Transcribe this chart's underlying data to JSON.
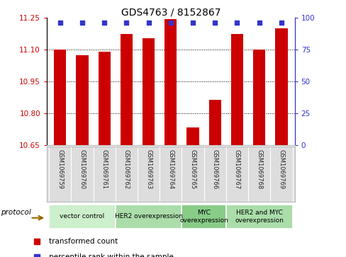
{
  "title": "GDS4763 / 8152867",
  "samples": [
    "GSM1069759",
    "GSM1069760",
    "GSM1069761",
    "GSM1069762",
    "GSM1069763",
    "GSM1069764",
    "GSM1069765",
    "GSM1069766",
    "GSM1069767",
    "GSM1069768",
    "GSM1069769"
  ],
  "transformed_counts": [
    11.1,
    11.075,
    11.09,
    11.175,
    11.155,
    11.245,
    10.735,
    10.865,
    11.175,
    11.1,
    11.2
  ],
  "ylim_left": [
    10.65,
    11.25
  ],
  "ylim_right": [
    0,
    100
  ],
  "yticks_left": [
    10.65,
    10.8,
    10.95,
    11.1,
    11.25
  ],
  "yticks_right": [
    0,
    25,
    50,
    75,
    100
  ],
  "bar_color": "#CC0000",
  "percentile_color": "#3333CC",
  "groups": [
    {
      "label": "vector control",
      "start": 0,
      "end": 2,
      "color": "#ccf0cc"
    },
    {
      "label": "HER2 overexpression",
      "start": 3,
      "end": 5,
      "color": "#aaddaa"
    },
    {
      "label": "MYC\noverexpression",
      "start": 6,
      "end": 7,
      "color": "#88cc88"
    },
    {
      "label": "HER2 and MYC\noverexpression",
      "start": 8,
      "end": 10,
      "color": "#aaddaa"
    }
  ],
  "protocol_label": "protocol",
  "legend_bar_label": "transformed count",
  "legend_pct_label": "percentile rank within the sample",
  "background_color": "#ffffff",
  "tick_label_color_left": "#CC0000",
  "tick_label_color_right": "#3333CC"
}
